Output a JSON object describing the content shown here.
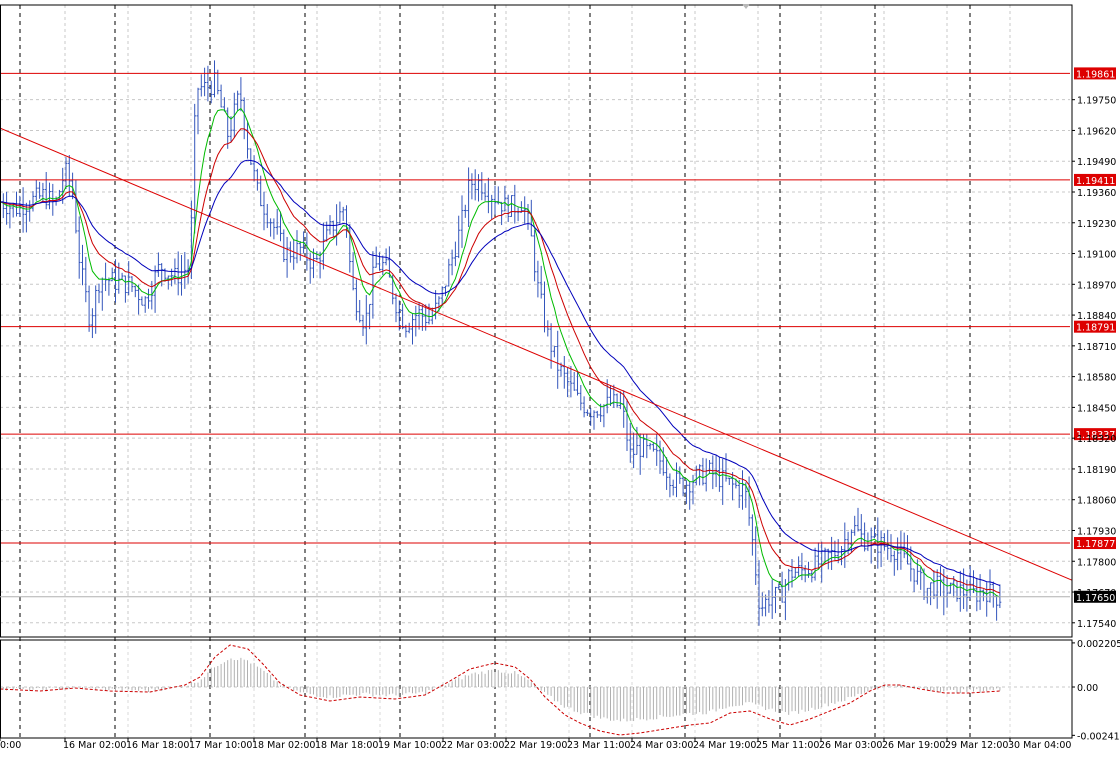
{
  "chart_data": [
    {
      "type": "candlestick",
      "title": "",
      "y_range": [
        1.1748,
        1.2015
      ],
      "x_range": [
        0,
        1000
      ],
      "grid": true,
      "price_ticks": [
        "1.19750",
        "1.19620",
        "1.19490",
        "1.19360",
        "1.19230",
        "1.19100",
        "1.18970",
        "1.18840",
        "1.18710",
        "1.18580",
        "1.18450",
        "1.18320",
        "1.18190",
        "1.18060",
        "1.17930",
        "1.17800",
        "1.17670",
        "1.17540"
      ],
      "time_labels": [
        {
          "x": 0,
          "label": "0:00"
        },
        {
          "x": 65,
          "label": "16 Mar 02:00"
        },
        {
          "x": 128,
          "label": "16 Mar 18:00"
        },
        {
          "x": 191,
          "label": "17 Mar 10:00"
        },
        {
          "x": 254,
          "label": "18 Mar 02:00"
        },
        {
          "x": 317,
          "label": "18 Mar 18:00"
        },
        {
          "x": 380,
          "label": "19 Mar 10:00"
        },
        {
          "x": 443,
          "label": "22 Mar 03:00"
        },
        {
          "x": 506,
          "label": "22 Mar 19:00"
        },
        {
          "x": 569,
          "label": "23 Mar 11:00"
        },
        {
          "x": 632,
          "label": "24 Mar 03:00"
        },
        {
          "x": 695,
          "label": "24 Mar 19:00"
        },
        {
          "x": 758,
          "label": "25 Mar 11:00"
        },
        {
          "x": 821,
          "label": "26 Mar 03:00"
        },
        {
          "x": 884,
          "label": "26 Mar 19:00"
        },
        {
          "x": 947,
          "label": "29 Mar 12:00"
        },
        {
          "x": 1010,
          "label": "30 Mar 04:00"
        }
      ],
      "session_separators": [
        20,
        115,
        210,
        305,
        400,
        495,
        590,
        685,
        780,
        875,
        970
      ],
      "horizontal_levels": [
        {
          "value": 1.19861,
          "label": "1.19861",
          "color": "#dd0000"
        },
        {
          "value": 1.19411,
          "label": "1.19411",
          "color": "#dd0000"
        },
        {
          "value": 1.18791,
          "label": "1.18791",
          "color": "#dd0000"
        },
        {
          "value": 1.18337,
          "label": "1.18337",
          "color": "#dd0000"
        },
        {
          "value": 1.17877,
          "label": "1.17877",
          "color": "#dd0000"
        }
      ],
      "current_price": {
        "value": 1.1765,
        "label": "1.17650"
      },
      "trendline": {
        "x1": 0,
        "y1": 1.1963,
        "x2": 1072,
        "y2": 1.1772,
        "color": "#dd0000"
      },
      "price_path": [
        [
          0,
          1.1932
        ],
        [
          15,
          1.1929
        ],
        [
          30,
          1.1932
        ],
        [
          45,
          1.1935
        ],
        [
          55,
          1.193
        ],
        [
          65,
          1.1945
        ],
        [
          72,
          1.1938
        ],
        [
          80,
          1.1905
        ],
        [
          90,
          1.1882
        ],
        [
          100,
          1.19
        ],
        [
          115,
          1.1898
        ],
        [
          130,
          1.1897
        ],
        [
          145,
          1.189
        ],
        [
          160,
          1.1905
        ],
        [
          175,
          1.19
        ],
        [
          190,
          1.1905
        ],
        [
          196,
          1.198
        ],
        [
          205,
          1.198
        ],
        [
          215,
          1.1982
        ],
        [
          228,
          1.196
        ],
        [
          240,
          1.1978
        ],
        [
          248,
          1.1955
        ],
        [
          258,
          1.1935
        ],
        [
          270,
          1.1925
        ],
        [
          285,
          1.191
        ],
        [
          300,
          1.1912
        ],
        [
          315,
          1.1905
        ],
        [
          330,
          1.192
        ],
        [
          345,
          1.193
        ],
        [
          352,
          1.1895
        ],
        [
          365,
          1.188
        ],
        [
          375,
          1.1905
        ],
        [
          385,
          1.1905
        ],
        [
          395,
          1.189
        ],
        [
          405,
          1.188
        ],
        [
          418,
          1.1885
        ],
        [
          430,
          1.1882
        ],
        [
          440,
          1.189
        ],
        [
          450,
          1.1905
        ],
        [
          460,
          1.192
        ],
        [
          470,
          1.194
        ],
        [
          480,
          1.194
        ],
        [
          492,
          1.1935
        ],
        [
          505,
          1.193
        ],
        [
          515,
          1.193
        ],
        [
          522,
          1.1932
        ],
        [
          530,
          1.192
        ],
        [
          538,
          1.1895
        ],
        [
          548,
          1.1875
        ],
        [
          558,
          1.1862
        ],
        [
          568,
          1.1855
        ],
        [
          578,
          1.1848
        ],
        [
          590,
          1.1844
        ],
        [
          600,
          1.1845
        ],
        [
          612,
          1.1847
        ],
        [
          622,
          1.1845
        ],
        [
          630,
          1.1825
        ],
        [
          640,
          1.1828
        ],
        [
          652,
          1.1825
        ],
        [
          662,
          1.1822
        ],
        [
          672,
          1.1815
        ],
        [
          682,
          1.1812
        ],
        [
          695,
          1.1815
        ],
        [
          708,
          1.1818
        ],
        [
          720,
          1.1815
        ],
        [
          732,
          1.1812
        ],
        [
          745,
          1.181
        ],
        [
          752,
          1.179
        ],
        [
          760,
          1.176
        ],
        [
          770,
          1.1765
        ],
        [
          780,
          1.1765
        ],
        [
          790,
          1.1775
        ],
        [
          802,
          1.1776
        ],
        [
          815,
          1.1778
        ],
        [
          828,
          1.1782
        ],
        [
          840,
          1.1785
        ],
        [
          852,
          1.1795
        ],
        [
          862,
          1.179
        ],
        [
          872,
          1.1788
        ],
        [
          882,
          1.1787
        ],
        [
          895,
          1.1785
        ],
        [
          905,
          1.178
        ],
        [
          915,
          1.1775
        ],
        [
          925,
          1.1768
        ],
        [
          935,
          1.177
        ],
        [
          945,
          1.1767
        ],
        [
          955,
          1.1768
        ],
        [
          965,
          1.1767
        ],
        [
          975,
          1.1766
        ],
        [
          985,
          1.1768
        ],
        [
          995,
          1.1765
        ],
        [
          1000,
          1.1765
        ]
      ],
      "series": [
        {
          "name": "",
          "color": "#00bb00",
          "period": 8
        },
        {
          "name": "",
          "color": "#cc0000",
          "period": 16
        },
        {
          "name": "",
          "color": "#0000bb",
          "period": 30
        }
      ],
      "bar_color": "#3355bb"
    },
    {
      "type": "oscillator",
      "y_ticks": [
        "0.002205",
        "0.00",
        "-0.002417"
      ],
      "y_range": [
        -0.00255,
        0.00235
      ],
      "histogram_color": "#b0b0b0",
      "signal_color": "#cc0000",
      "osc_path": [
        [
          0,
          -0.0001
        ],
        [
          40,
          -0.0002
        ],
        [
          75,
          -5e-05
        ],
        [
          110,
          -0.0002
        ],
        [
          150,
          -0.00025
        ],
        [
          185,
          0.0001
        ],
        [
          200,
          0.0005
        ],
        [
          215,
          0.0015
        ],
        [
          230,
          0.0021
        ],
        [
          248,
          0.0019
        ],
        [
          262,
          0.0012
        ],
        [
          280,
          0.0002
        ],
        [
          300,
          -0.0004
        ],
        [
          330,
          -0.0007
        ],
        [
          360,
          -0.0005
        ],
        [
          395,
          -0.0006
        ],
        [
          425,
          -0.0004
        ],
        [
          450,
          0.0003
        ],
        [
          470,
          0.0009
        ],
        [
          495,
          0.0012
        ],
        [
          515,
          0.001
        ],
        [
          530,
          0.0004
        ],
        [
          545,
          -0.0005
        ],
        [
          565,
          -0.0014
        ],
        [
          580,
          -0.0018
        ],
        [
          600,
          -0.0022
        ],
        [
          620,
          -0.0024
        ],
        [
          640,
          -0.0023
        ],
        [
          665,
          -0.0021
        ],
        [
          690,
          -0.0019
        ],
        [
          710,
          -0.0018
        ],
        [
          730,
          -0.0013
        ],
        [
          750,
          -0.0012
        ],
        [
          770,
          -0.0016
        ],
        [
          790,
          -0.0019
        ],
        [
          810,
          -0.0016
        ],
        [
          830,
          -0.0012
        ],
        [
          850,
          -0.0008
        ],
        [
          870,
          -0.0002
        ],
        [
          885,
          0.0001
        ],
        [
          900,
          0.0001
        ],
        [
          920,
          -0.0001
        ],
        [
          945,
          -0.0003
        ],
        [
          970,
          -0.0003
        ],
        [
          1000,
          -0.0002
        ]
      ]
    }
  ]
}
